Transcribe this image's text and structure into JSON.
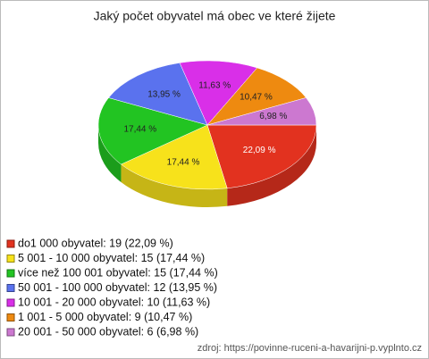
{
  "chart_data": {
    "type": "pie3d",
    "title": "Jaký počet obyvatel má obec ve které žijete",
    "categories": [
      "do1 000 obyvatel: 19 (22,09 %)",
      "5 001 - 10 000 obyvatel: 15 (17,44 %)",
      "více než 100 001 obyvatel: 15 (17,44 %)",
      "50 001 - 100 000 obyvatel: 12 (13,95 %)",
      "10 001 - 20 000 obyvatel: 10 (11,63 %)",
      "1 001 - 5 000 obyvatel: 9 (10,47 %)",
      "20 001 - 50 000 obyvatel: 6 (6,98 %)"
    ],
    "values": [
      22.09,
      17.44,
      17.44,
      13.95,
      11.63,
      10.47,
      6.98
    ],
    "value_labels": [
      "22,09 %",
      "17,44 %",
      "17,44 %",
      "13,95 %",
      "11,63 %",
      "10,47 %",
      "6,98 %"
    ],
    "colors": [
      "#e2321f",
      "#f7e21b",
      "#22c422",
      "#5a72ee",
      "#d92fe8",
      "#ee8a10",
      "#cc78d0"
    ],
    "source": "zdroj: https://povinne-ruceni-a-havarijni-p.vyplnto.cz"
  }
}
